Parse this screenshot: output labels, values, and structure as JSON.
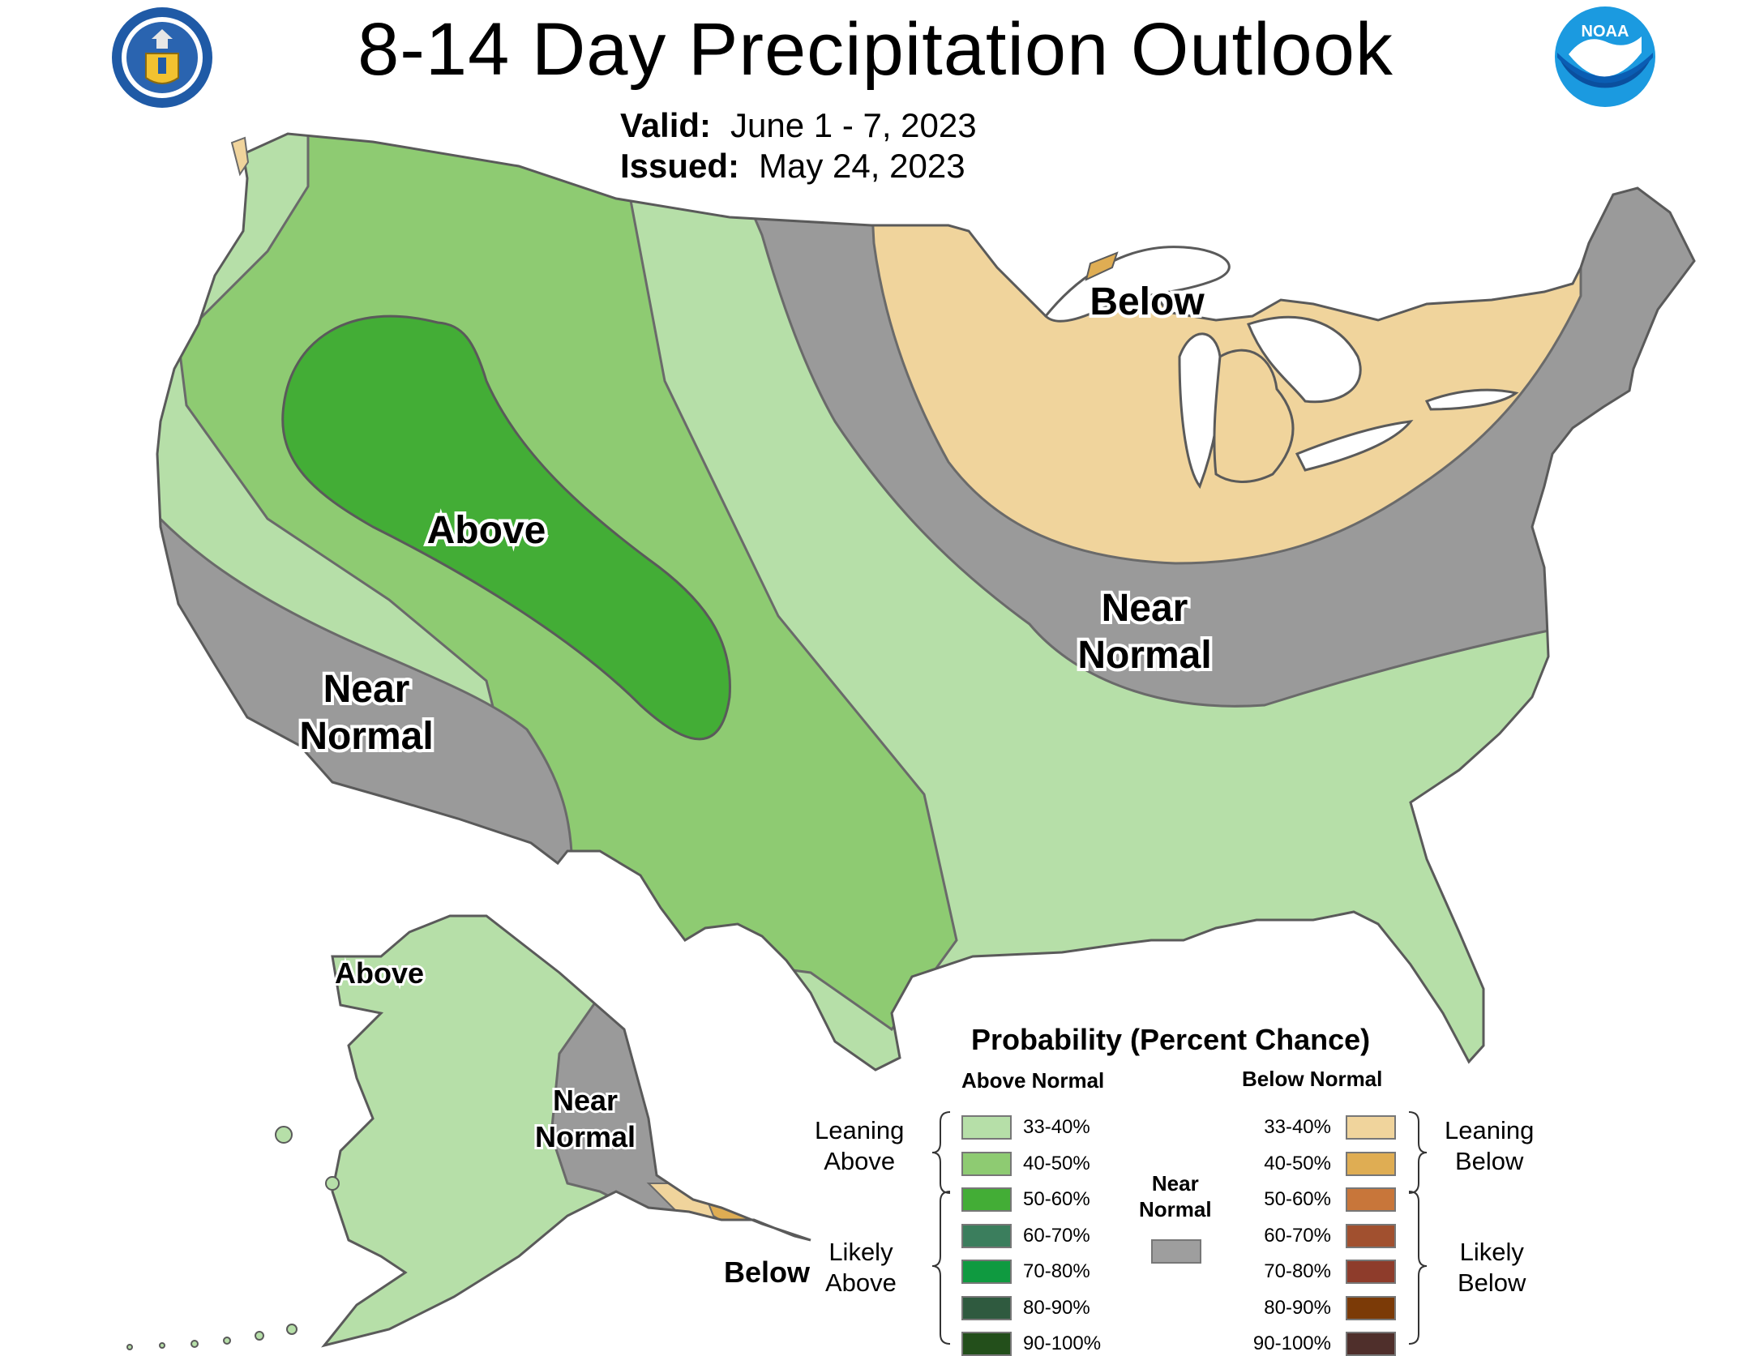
{
  "header": {
    "title": "8-14 Day Precipitation Outlook",
    "valid_label": "Valid:",
    "valid_value": "June 1 - 7, 2023",
    "issued_label": "Issued:",
    "issued_value": "May 24, 2023"
  },
  "logos": {
    "left": "doc-seal-icon",
    "right": "noaa-logo-icon",
    "noaa_text": "NOAA"
  },
  "map": {
    "colors": {
      "above_33_40": "#b6dfa8",
      "above_40_50": "#8ecb72",
      "above_50_60": "#43ad36",
      "near": "#9a9a9a",
      "below_33_40": "#f0d49c",
      "below_40_50": "#dfad53",
      "water": "#ffffff"
    },
    "labels": {
      "above_west": "Above",
      "near_southwest": [
        "Near",
        "Normal"
      ],
      "below_lakes": "Below",
      "near_east": [
        "Near",
        "Normal"
      ],
      "alaska_above": "Above",
      "alaska_near": [
        "Near",
        "Normal"
      ],
      "alaska_below": "Below"
    }
  },
  "legend": {
    "title": "Probability (Percent Chance)",
    "above_header": "Above Normal",
    "below_header": "Below Normal",
    "near_header": [
      "Near",
      "Normal"
    ],
    "near_color": "#9e9e9e",
    "leaning_above": [
      "Leaning",
      "Above"
    ],
    "likely_above": [
      "Likely",
      "Above"
    ],
    "leaning_below": [
      "Leaning",
      "Below"
    ],
    "likely_below": [
      "Likely",
      "Below"
    ],
    "above": [
      {
        "label": "33-40%",
        "color": "#b6dfa8"
      },
      {
        "label": "40-50%",
        "color": "#8ecb72"
      },
      {
        "label": "50-60%",
        "color": "#43ad36"
      },
      {
        "label": "60-70%",
        "color": "#3b7e5d"
      },
      {
        "label": "70-80%",
        "color": "#0f9a40"
      },
      {
        "label": "80-90%",
        "color": "#2f5a3f"
      },
      {
        "label": "90-100%",
        "color": "#234f1b"
      }
    ],
    "below": [
      {
        "label": "33-40%",
        "color": "#f0d49c"
      },
      {
        "label": "40-50%",
        "color": "#dfad53"
      },
      {
        "label": "50-60%",
        "color": "#c8763a"
      },
      {
        "label": "60-70%",
        "color": "#a1502f"
      },
      {
        "label": "70-80%",
        "color": "#8e3c2b"
      },
      {
        "label": "80-90%",
        "color": "#7b3a07"
      },
      {
        "label": "90-100%",
        "color": "#4f2f2b"
      }
    ]
  }
}
